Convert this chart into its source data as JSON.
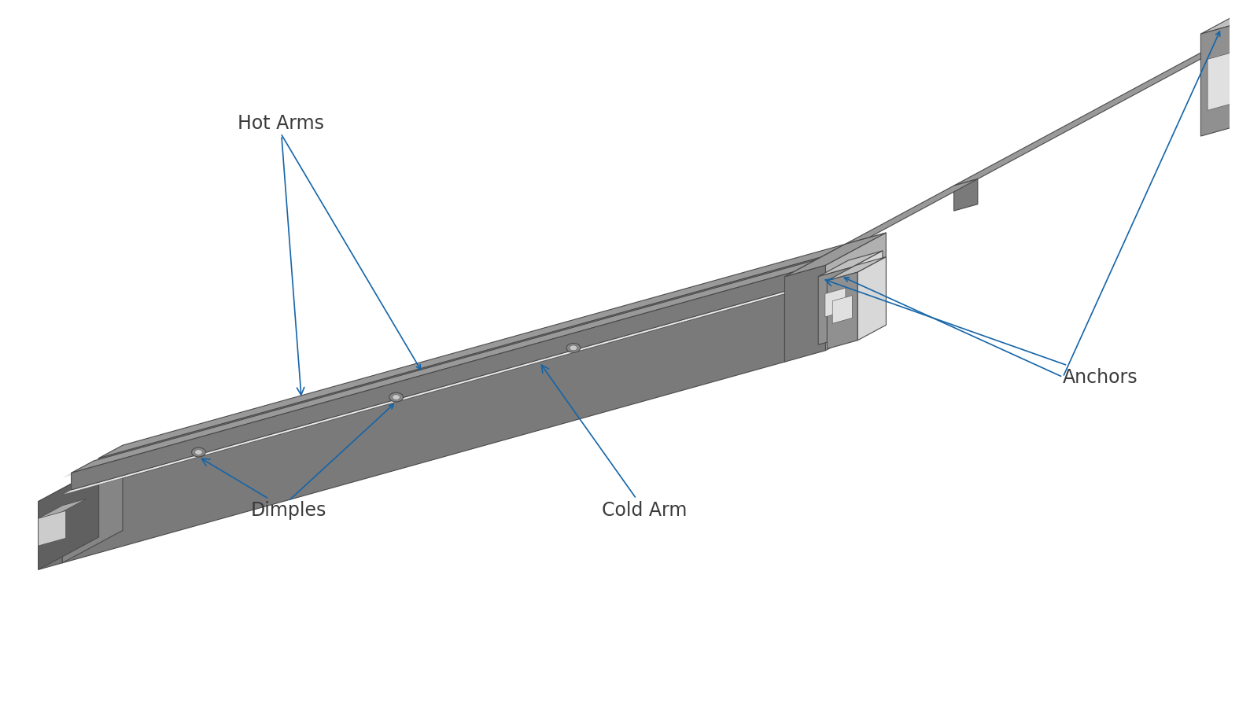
{
  "background_color": "#ffffff",
  "body_top_color": "#999999",
  "body_side_color": "#7a7a7a",
  "body_right_color": "#b0b0b0",
  "body_edge_color": "#4a4a4a",
  "slot_color": "#e0e0e0",
  "anchor_top_color": "#c0c0c0",
  "anchor_front_color": "#909090",
  "anchor_right_color": "#d8d8d8",
  "annotation_color": "#1565a8",
  "text_color": "#3a3a3a",
  "labels": {
    "hot_arms": "Hot Arms",
    "dimples": "Dimples",
    "cold_arm": "Cold Arm",
    "anchors": "Anchors"
  },
  "font_size": 17,
  "font_family": "DejaVu Sans"
}
